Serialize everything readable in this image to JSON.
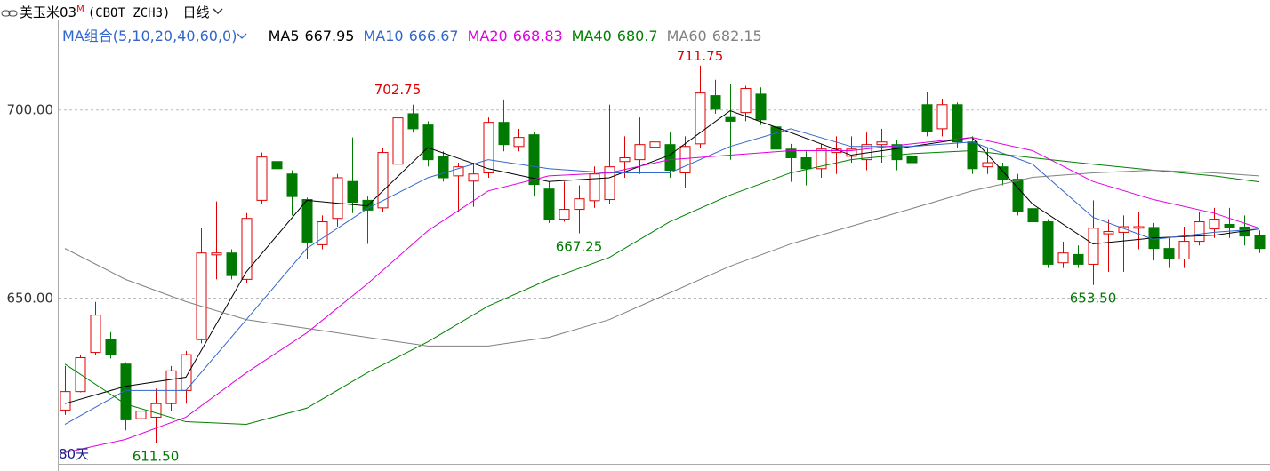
{
  "header": {
    "title": "美玉米03",
    "title_sup": "M",
    "code": "(CBOT ZCH3)",
    "period": "日线"
  },
  "chart_data": {
    "type": "candlestick",
    "legend_title": "MA组合(5,10,20,40,60,0)",
    "period_label": "80天",
    "up_color": "#e00000",
    "down_color": "#007a00",
    "grid": true,
    "ylim": [
      606,
      724
    ],
    "yticks": [
      {
        "value": 650,
        "label": "650.00"
      },
      {
        "value": 700,
        "label": "700.00"
      }
    ],
    "open": [
      620.3,
      625.2,
      635.6,
      639,
      632.5,
      618,
      618.4,
      622,
      625.5,
      639,
      661.5,
      662,
      655,
      676,
      686.3,
      683,
      676.2,
      664.2,
      671.2,
      681,
      676,
      674,
      685.6,
      699,
      696,
      687.7,
      682.5,
      681.1,
      683.3,
      696.7,
      690.3,
      693.4,
      679,
      671,
      673.6,
      675.9,
      676.2,
      686.3,
      686.8,
      690.1,
      690.8,
      683.3,
      691,
      703.8,
      698,
      699.3,
      704.2,
      695.5,
      689.6,
      687.3,
      684.4,
      688.7,
      687.7,
      686.8,
      690.8,
      690.8,
      687.7,
      701.4,
      695,
      701.4,
      691.5,
      684.9,
      684.9,
      681.6,
      673.8,
      670.3,
      659.4,
      661.6,
      659,
      667.1,
      667.5,
      668.6,
      668.8,
      663.2,
      660.4,
      665.1,
      668.4,
      669.6,
      668.9,
      666.7
    ],
    "high": [
      632,
      635,
      649,
      641,
      633,
      622,
      626,
      632,
      636,
      668.6,
      675.7,
      663,
      672.6,
      688.7,
      688,
      684,
      676.7,
      672,
      683,
      692.7,
      677,
      690,
      702.75,
      701.4,
      697,
      689,
      686,
      686,
      698,
      702.8,
      695,
      694,
      681,
      681,
      680,
      685,
      701.4,
      693,
      698,
      695,
      694,
      693,
      711.75,
      708,
      706.8,
      706.4,
      706,
      697,
      691,
      689,
      691,
      693,
      693,
      694,
      695,
      692,
      690,
      704.7,
      703,
      702,
      693,
      690,
      686,
      683,
      676,
      671,
      665,
      664,
      676,
      671,
      672,
      673,
      670,
      666,
      669,
      673,
      674,
      674,
      672,
      668
    ],
    "low": [
      619,
      625,
      635,
      634,
      614.9,
      614,
      611.5,
      620,
      622,
      638,
      655,
      655,
      654,
      675,
      682,
      672,
      660.4,
      663,
      669,
      672.6,
      664.4,
      673,
      684,
      694,
      685,
      681,
      673,
      674.3,
      682,
      689,
      689,
      677,
      670,
      670.3,
      667.25,
      674,
      675,
      682,
      683,
      688,
      682,
      679.2,
      690,
      699,
      686.8,
      697,
      696,
      688,
      680.9,
      680,
      682,
      683,
      686,
      684,
      686,
      684,
      683,
      693,
      693,
      690,
      683,
      683,
      680,
      672,
      665,
      658,
      658,
      658,
      653.5,
      657,
      657,
      663,
      660,
      658,
      658,
      664,
      666,
      666,
      664,
      662
    ],
    "close": [
      625.2,
      634.2,
      645.5,
      635,
      617.7,
      620,
      622,
      630.7,
      635,
      662,
      662,
      656,
      671.2,
      687.5,
      684.4,
      677,
      664.9,
      670.3,
      682,
      675.5,
      673.4,
      688.7,
      697.9,
      695,
      686.8,
      682,
      684.9,
      683,
      696.7,
      690.8,
      692.7,
      680.2,
      670.8,
      673.6,
      676.4,
      683,
      684.9,
      687.3,
      690.8,
      691.5,
      684,
      690.3,
      704.5,
      700.2,
      697,
      705.7,
      697.4,
      689.6,
      687.3,
      684.4,
      689.6,
      689.6,
      689.6,
      690.8,
      691.5,
      686.8,
      686,
      694.3,
      701.4,
      691.5,
      684.4,
      686,
      681.6,
      673.1,
      670.3,
      659,
      662,
      659,
      668.6,
      667.7,
      669,
      669,
      663.2,
      660.4,
      665.1,
      670.3,
      671,
      668.9,
      666.5,
      663.2
    ],
    "series": [
      {
        "name": "MA5",
        "color": "#000000",
        "legend_value": 667.95,
        "x": [
          0,
          4,
          8,
          12,
          16,
          20,
          24,
          28,
          32,
          36,
          40,
          44,
          48,
          52,
          56,
          60,
          64,
          68,
          72,
          76,
          79
        ],
        "values": [
          622,
          626.6,
          629,
          657,
          676,
          674.5,
          690,
          684.4,
          681,
          682,
          688,
          699.8,
          694,
          688,
          690.3,
          692.7,
          675,
          664.4,
          666,
          666.7,
          668.4
        ]
      },
      {
        "name": "MA10",
        "color": "#3366cc",
        "legend_value": 666.67,
        "x": [
          0,
          4,
          8,
          12,
          16,
          20,
          24,
          28,
          32,
          36,
          40,
          44,
          48,
          52,
          56,
          60,
          64,
          68,
          72,
          76,
          79
        ],
        "values": [
          616.5,
          625.5,
          625.5,
          644.3,
          663.2,
          673.8,
          682,
          686.8,
          684.4,
          683.3,
          683.3,
          690.3,
          695,
          690.3,
          690.3,
          691.5,
          685.6,
          671.5,
          665.6,
          667.5,
          668.4
        ]
      },
      {
        "name": "MA20",
        "color": "#e000e0",
        "legend_value": 668.83,
        "x": [
          0,
          4,
          8,
          12,
          16,
          20,
          24,
          28,
          32,
          36,
          40,
          44,
          48,
          52,
          56,
          60,
          64,
          68,
          72,
          76,
          79
        ],
        "values": [
          609,
          612.5,
          618.4,
          630.2,
          640.8,
          653.8,
          667.9,
          678.5,
          682.5,
          683.3,
          686.8,
          688,
          689.2,
          689.2,
          691,
          692.7,
          689.2,
          681,
          676.2,
          672.6,
          668.6
        ]
      },
      {
        "name": "MA40",
        "color": "#008000",
        "legend_value": 680.7,
        "x": [
          0,
          4,
          8,
          12,
          16,
          20,
          24,
          28,
          32,
          36,
          40,
          44,
          48,
          52,
          56,
          60,
          64,
          68,
          72,
          76,
          79
        ],
        "values": [
          632.5,
          621.9,
          617.2,
          616.5,
          620.8,
          630.2,
          638.4,
          647.9,
          655,
          660.8,
          670.3,
          677.4,
          683.3,
          686.8,
          688.4,
          689.2,
          687.3,
          685.6,
          684,
          682.5,
          680.9
        ]
      },
      {
        "name": "MA60",
        "color": "#808080",
        "legend_value": 682.15,
        "x": [
          0,
          4,
          8,
          12,
          16,
          20,
          24,
          28,
          32,
          36,
          40,
          44,
          48,
          52,
          56,
          60,
          64,
          68,
          72,
          76,
          79
        ],
        "values": [
          663.2,
          655,
          649.1,
          644.3,
          642,
          639.6,
          637.3,
          637.3,
          639.6,
          644.3,
          651.4,
          658.5,
          664.4,
          669.1,
          673.8,
          678.5,
          682.1,
          683.3,
          684,
          683.3,
          682.5
        ]
      }
    ],
    "annotations": [
      {
        "x": 22,
        "value": 702.75
      },
      {
        "x": 42,
        "value": 711.75
      },
      {
        "x": 34,
        "value": 667.25
      },
      {
        "x": 68,
        "value": 653.5,
        "label": "653.50"
      },
      {
        "x": 6,
        "value": 611.5,
        "label": "611.50"
      }
    ]
  }
}
